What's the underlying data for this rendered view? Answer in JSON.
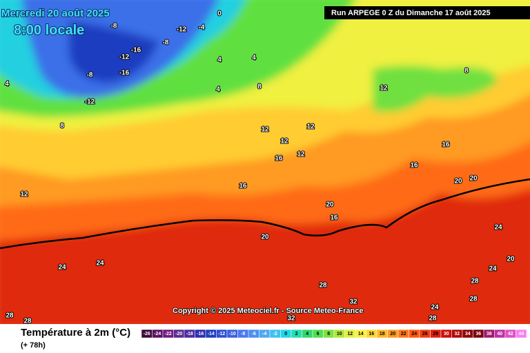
{
  "header": {
    "date": "Mercredi 20 août 2025",
    "time": "8:00 locale",
    "run": "Run ARPEGE 0 Z du Dimanche 17 août 2025"
  },
  "copyright": "Copyright © 2025 Meteociel.fr - Source Meteo-France",
  "footer": {
    "title": "Température à 2m (°C)",
    "lead": "(+ 78h)"
  },
  "colorbar": {
    "ticks": [
      -26,
      -24,
      -22,
      -20,
      -18,
      -16,
      -14,
      -12,
      -10,
      -8,
      -6,
      -4,
      -2,
      0,
      2,
      4,
      6,
      8,
      10,
      12,
      14,
      16,
      18,
      20,
      22,
      24,
      26,
      28,
      30,
      32,
      34,
      36,
      38,
      40,
      42,
      44
    ],
    "colors": [
      "#3a0a3a",
      "#5a1060",
      "#701a80",
      "#5a2a90",
      "#4a2aa0",
      "#2a2ab0",
      "#1e3cc0",
      "#2a50d0",
      "#3a60e0",
      "#4a78f0",
      "#4a90f0",
      "#50a8f0",
      "#40c0f0",
      "#20d8e8",
      "#20e0b0",
      "#30d870",
      "#50e050",
      "#80e040",
      "#b0e838",
      "#e0f040",
      "#f8f040",
      "#ffd830",
      "#ffb828",
      "#ff9820",
      "#ff7818",
      "#ff5810",
      "#f03c10",
      "#e02010",
      "#c81008",
      "#b00808",
      "#900408",
      "#780010",
      "#a01870",
      "#c030a0",
      "#e050c8",
      "#f880f0"
    ]
  },
  "map_labels": [
    -8,
    -16,
    -12,
    -16,
    -8,
    -12,
    -8,
    -12,
    -4,
    0,
    4,
    4,
    8,
    12,
    12,
    12,
    16,
    16,
    12,
    4,
    8,
    12,
    4,
    16,
    20,
    20,
    16,
    8,
    12,
    16,
    20,
    20,
    24,
    24,
    28,
    28,
    32,
    24,
    28,
    28,
    24,
    20,
    24,
    32,
    28,
    28
  ]
}
